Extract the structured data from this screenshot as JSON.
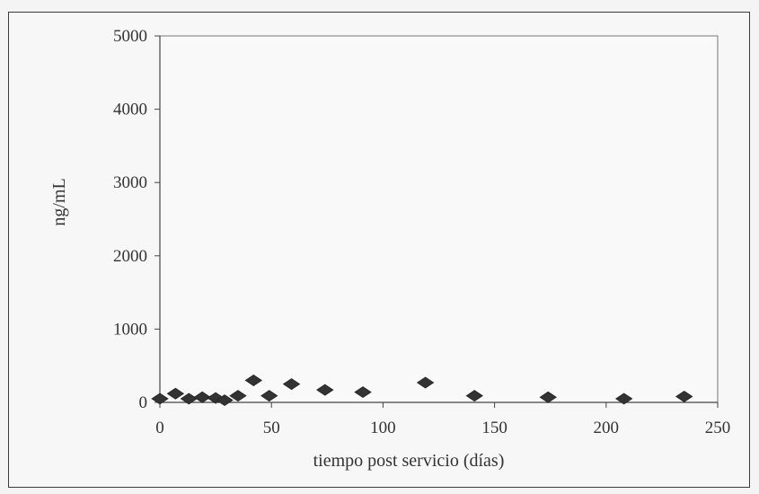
{
  "chart_data": {
    "type": "scatter",
    "title": "",
    "xlabel": "tiempo post servicio (días)",
    "ylabel": "ng/mL",
    "xlim": [
      0,
      250
    ],
    "ylim": [
      0,
      5000
    ],
    "xticks": [
      0,
      50,
      100,
      150,
      200,
      250
    ],
    "yticks": [
      0,
      1000,
      2000,
      3000,
      4000,
      5000
    ],
    "grid": false,
    "legend": "none",
    "marker": "diamond",
    "marker_color": "#333333",
    "series": [
      {
        "points": [
          [
            0,
            50
          ],
          [
            7,
            120
          ],
          [
            13,
            50
          ],
          [
            19,
            70
          ],
          [
            25,
            60
          ],
          [
            29,
            30
          ],
          [
            35,
            90
          ],
          [
            42,
            300
          ],
          [
            49,
            90
          ],
          [
            59,
            250
          ],
          [
            74,
            170
          ],
          [
            91,
            140
          ],
          [
            119,
            270
          ],
          [
            141,
            90
          ],
          [
            174,
            70
          ],
          [
            208,
            50
          ],
          [
            235,
            80
          ]
        ]
      }
    ]
  }
}
